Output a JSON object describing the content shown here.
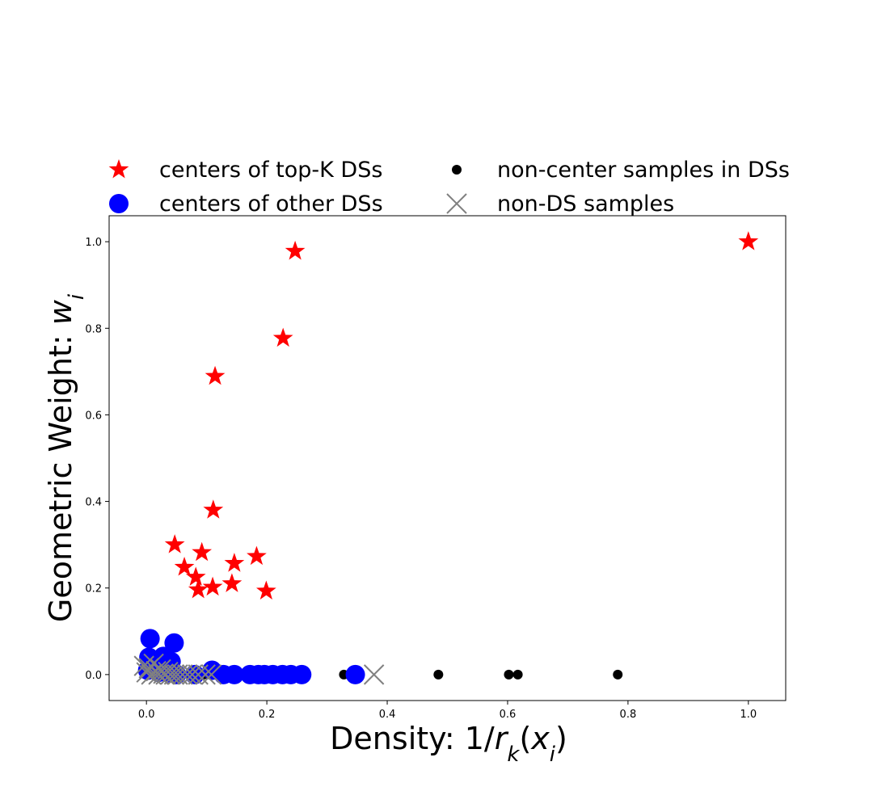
{
  "chart_data": {
    "type": "scatter",
    "xlabel": "Density: 1/r_k(x_i)",
    "ylabel": "Geometric Weight: w_i",
    "xlim": [
      -0.062,
      1.062
    ],
    "ylim": [
      -0.06,
      1.06
    ],
    "x_ticks": [
      "0.0",
      "0.2",
      "0.4",
      "0.6",
      "0.8",
      "1.0"
    ],
    "y_ticks": [
      "0.0",
      "0.2",
      "0.4",
      "0.6",
      "0.8",
      "1.0"
    ],
    "legend_position": "top, outside plot, 2 columns",
    "series": [
      {
        "name": "centers of top-K DSs",
        "marker": "star",
        "color": "#ff0000",
        "points": [
          [
            1.0,
            1.0
          ],
          [
            0.247,
            0.978
          ],
          [
            0.227,
            0.777
          ],
          [
            0.114,
            0.689
          ],
          [
            0.111,
            0.38
          ],
          [
            0.047,
            0.3
          ],
          [
            0.092,
            0.282
          ],
          [
            0.183,
            0.273
          ],
          [
            0.146,
            0.257
          ],
          [
            0.063,
            0.248
          ],
          [
            0.082,
            0.225
          ],
          [
            0.142,
            0.21
          ],
          [
            0.11,
            0.202
          ],
          [
            0.086,
            0.196
          ],
          [
            0.199,
            0.193
          ]
        ]
      },
      {
        "name": "centers of other DSs",
        "marker": "circle",
        "color": "#0000ff",
        "points": [
          [
            0.006,
            0.083
          ],
          [
            0.046,
            0.073
          ],
          [
            0.004,
            0.04
          ],
          [
            0.028,
            0.042
          ],
          [
            0.041,
            0.03
          ],
          [
            0.01,
            0.02
          ],
          [
            0.002,
            0.01
          ],
          [
            0.02,
            0.005
          ],
          [
            0.036,
            0.004
          ],
          [
            0.05,
            0.0
          ],
          [
            0.08,
            0.0
          ],
          [
            0.109,
            0.01
          ],
          [
            0.128,
            0.0
          ],
          [
            0.146,
            0.0
          ],
          [
            0.172,
            0.0
          ],
          [
            0.186,
            0.0
          ],
          [
            0.196,
            0.0
          ],
          [
            0.21,
            0.0
          ],
          [
            0.226,
            0.0
          ],
          [
            0.24,
            0.0
          ],
          [
            0.258,
            0.0
          ],
          [
            0.347,
            0.0
          ]
        ]
      },
      {
        "name": "non-center samples in DSs",
        "marker": "small-circle",
        "color": "#000000",
        "points": [
          [
            0.055,
            0.0
          ],
          [
            0.075,
            0.0
          ],
          [
            0.095,
            0.0
          ],
          [
            0.118,
            0.0
          ],
          [
            0.135,
            0.0
          ],
          [
            0.15,
            0.0
          ],
          [
            0.16,
            0.0
          ],
          [
            0.175,
            0.0
          ],
          [
            0.19,
            0.0
          ],
          [
            0.205,
            0.0
          ],
          [
            0.215,
            0.0
          ],
          [
            0.222,
            0.0
          ],
          [
            0.328,
            0.0
          ],
          [
            0.485,
            0.0
          ],
          [
            0.602,
            0.0
          ],
          [
            0.617,
            0.0
          ],
          [
            0.783,
            0.0
          ]
        ]
      },
      {
        "name": "non-DS samples",
        "marker": "x",
        "color": "#808080",
        "points": [
          [
            -0.004,
            0.02
          ],
          [
            0.0,
            0.005
          ],
          [
            0.004,
            0.015
          ],
          [
            0.008,
            0.0
          ],
          [
            0.012,
            0.025
          ],
          [
            0.016,
            0.008
          ],
          [
            0.02,
            0.0
          ],
          [
            0.024,
            0.012
          ],
          [
            0.028,
            0.002
          ],
          [
            0.032,
            0.0
          ],
          [
            0.036,
            0.006
          ],
          [
            0.04,
            0.0
          ],
          [
            0.046,
            0.0
          ],
          [
            0.052,
            0.0
          ],
          [
            0.06,
            0.0
          ],
          [
            0.068,
            0.0
          ],
          [
            0.076,
            0.0
          ],
          [
            0.086,
            0.0
          ],
          [
            0.098,
            0.0
          ],
          [
            0.108,
            0.0
          ],
          [
            0.378,
            0.0
          ]
        ]
      }
    ]
  }
}
